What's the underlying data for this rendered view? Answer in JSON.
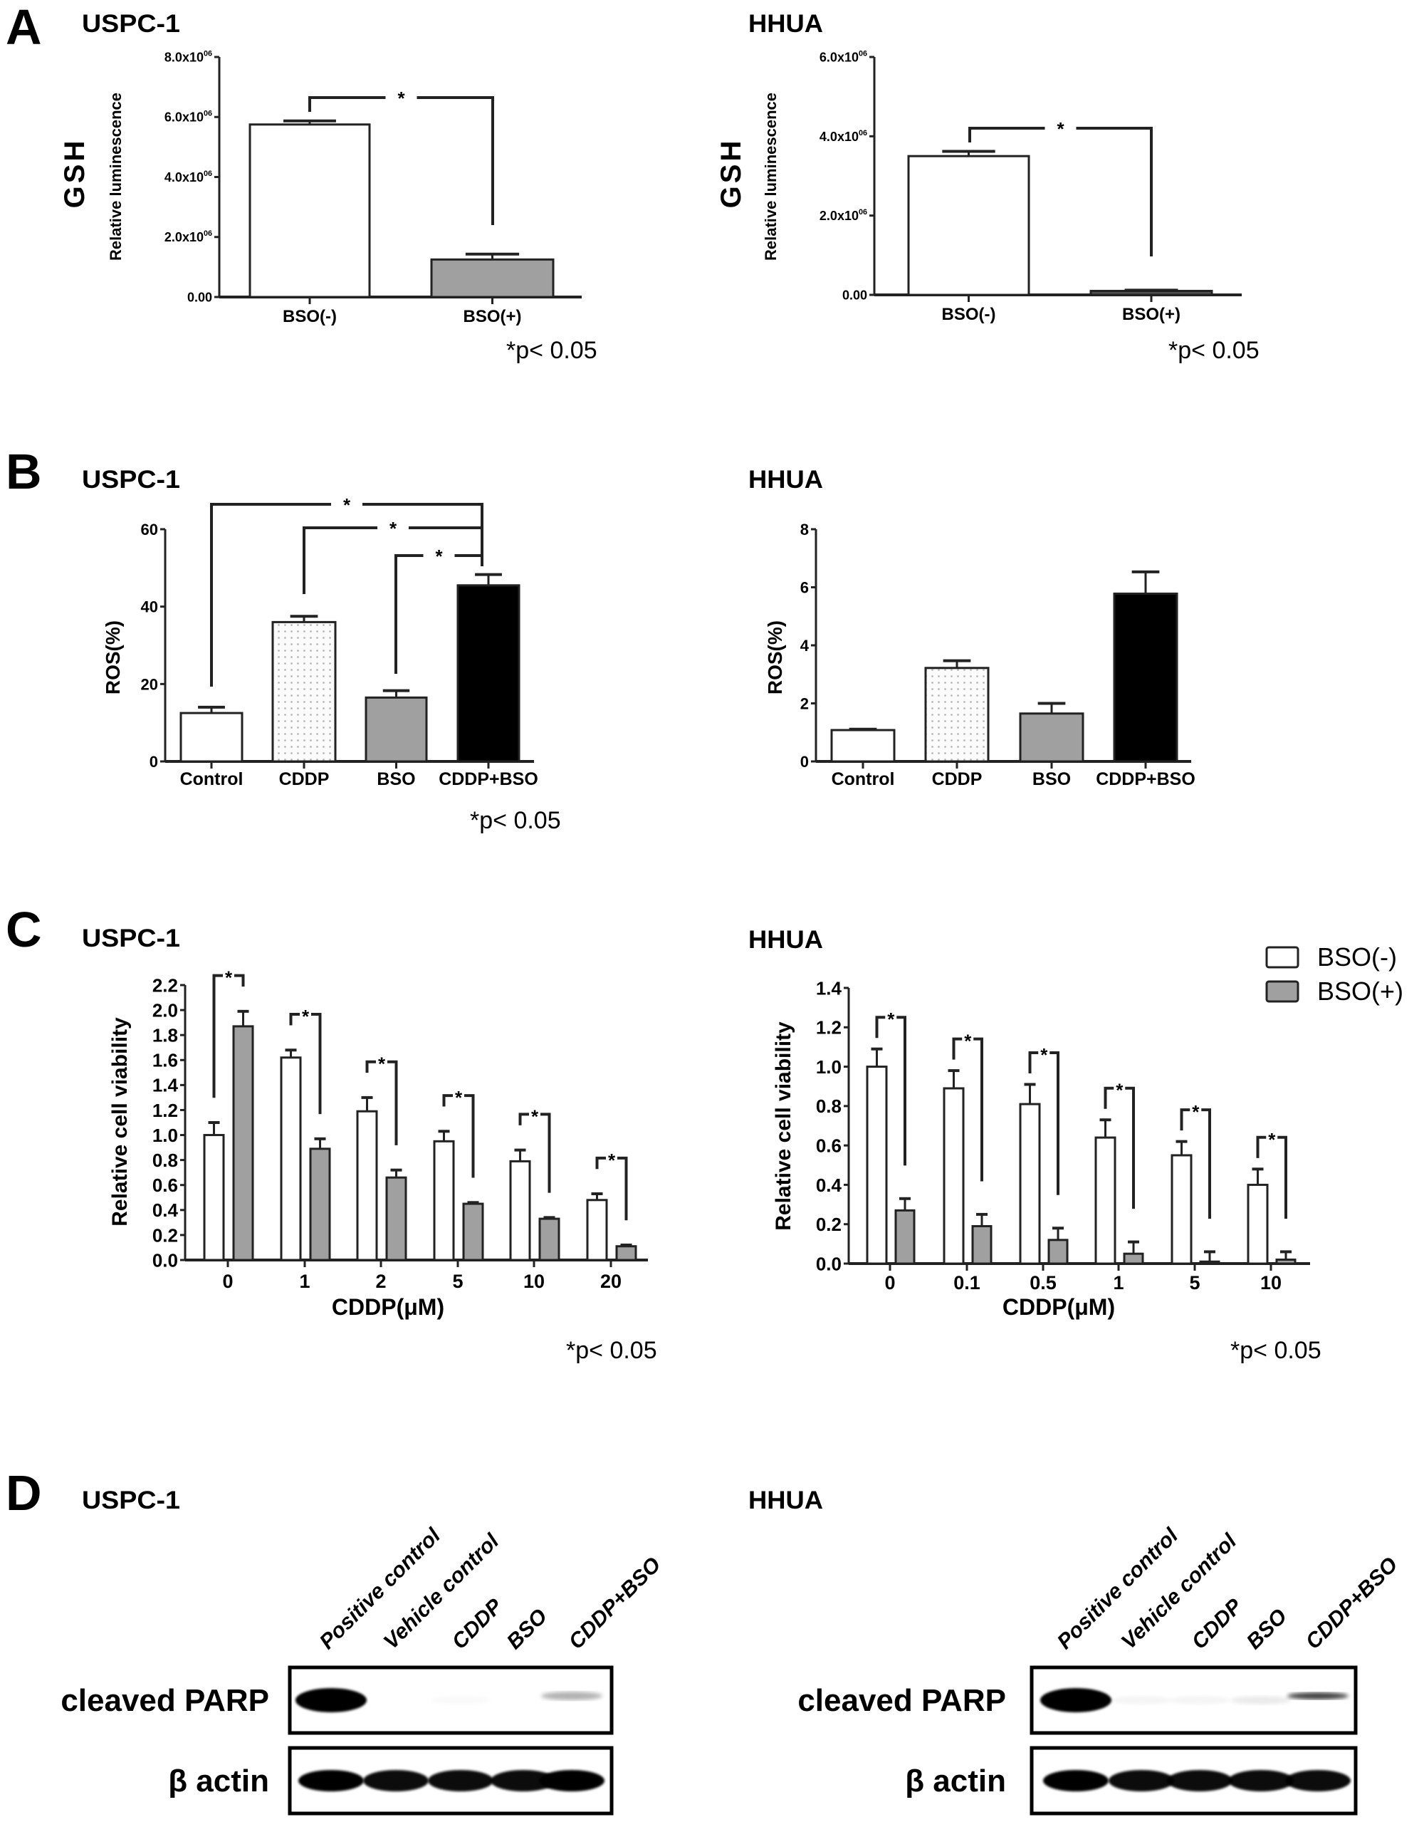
{
  "figure": {
    "panels": [
      {
        "letter": "A",
        "left_title": "USPC-1",
        "right_title": "HHUA"
      },
      {
        "letter": "B",
        "left_title": "USPC-1",
        "right_title": "HHUA"
      },
      {
        "letter": "C",
        "left_title": "USPC-1",
        "right_title": "HHUA"
      },
      {
        "letter": "D",
        "left_title": "USPC-1",
        "right_title": "HHUA"
      }
    ]
  },
  "chart_data": [
    {
      "panel": "A",
      "cell_line": "USPC-1",
      "type": "bar",
      "measure_label": "GSH",
      "ylabel": "Relative luminescence",
      "xlabel": "",
      "ylim": [
        0,
        8000000
      ],
      "yticks": [
        {
          "value": 0,
          "label": "0.00",
          "exp": ""
        },
        {
          "value": 2000000,
          "label": "2.0x10",
          "exp": "06"
        },
        {
          "value": 4000000,
          "label": "4.0x10",
          "exp": "06"
        },
        {
          "value": 6000000,
          "label": "6.0x10",
          "exp": "06"
        },
        {
          "value": 8000000,
          "label": "8.0x10",
          "exp": "06"
        }
      ],
      "categories": [
        "BSO(-)",
        "BSO(+)"
      ],
      "values": [
        5750000,
        1250000
      ],
      "errors": [
        120000,
        180000
      ],
      "fills": [
        "#ffffff",
        "#a0a0a0"
      ],
      "significance": [
        {
          "between": [
            "BSO(-)",
            "BSO(+)"
          ],
          "label": "*"
        }
      ],
      "note": "*p< 0.05"
    },
    {
      "panel": "A",
      "cell_line": "HHUA",
      "type": "bar",
      "measure_label": "GSH",
      "ylabel": "Relative luminescence",
      "xlabel": "",
      "ylim": [
        0,
        6000000
      ],
      "yticks": [
        {
          "value": 0,
          "label": "0.00",
          "exp": ""
        },
        {
          "value": 2000000,
          "label": "2.0x10",
          "exp": "06"
        },
        {
          "value": 4000000,
          "label": "4.0x10",
          "exp": "06"
        },
        {
          "value": 6000000,
          "label": "6.0x10",
          "exp": "06"
        }
      ],
      "categories": [
        "BSO(-)",
        "BSO(+)"
      ],
      "values": [
        3500000,
        100000
      ],
      "errors": [
        120000,
        20000
      ],
      "fills": [
        "#ffffff",
        "#505050"
      ],
      "significance": [
        {
          "between": [
            "BSO(-)",
            "BSO(+)"
          ],
          "label": "*"
        }
      ],
      "note": "*p< 0.05"
    },
    {
      "panel": "B",
      "cell_line": "USPC-1",
      "type": "bar",
      "ylabel": "ROS(%)",
      "xlabel": "",
      "ylim": [
        0,
        60
      ],
      "yticks": [
        {
          "value": 0,
          "label": "0",
          "exp": ""
        },
        {
          "value": 20,
          "label": "20",
          "exp": ""
        },
        {
          "value": 40,
          "label": "40",
          "exp": ""
        },
        {
          "value": 60,
          "label": "60",
          "exp": ""
        }
      ],
      "categories": [
        "Control",
        "CDDP",
        "BSO",
        "CDDP+BSO"
      ],
      "values": [
        12.5,
        36,
        16.5,
        45.5
      ],
      "errors": [
        1.5,
        1.5,
        1.8,
        2.8
      ],
      "fills": [
        "#ffffff",
        "dotted",
        "#a0a0a0",
        "#000000"
      ],
      "significance": [
        {
          "between": [
            "Control",
            "CDDP+BSO"
          ],
          "label": "*"
        },
        {
          "between": [
            "CDDP",
            "CDDP+BSO"
          ],
          "label": "*"
        },
        {
          "between": [
            "BSO",
            "CDDP+BSO"
          ],
          "label": "*"
        }
      ],
      "note": "*p< 0.05"
    },
    {
      "panel": "B",
      "cell_line": "HHUA",
      "type": "bar",
      "ylabel": "ROS(%)",
      "xlabel": "",
      "ylim": [
        0,
        8
      ],
      "yticks": [
        {
          "value": 0,
          "label": "0",
          "exp": ""
        },
        {
          "value": 2,
          "label": "2",
          "exp": ""
        },
        {
          "value": 4,
          "label": "4",
          "exp": ""
        },
        {
          "value": 6,
          "label": "6",
          "exp": ""
        },
        {
          "value": 8,
          "label": "8",
          "exp": ""
        }
      ],
      "categories": [
        "Control",
        "CDDP",
        "BSO",
        "CDDP+BSO"
      ],
      "values": [
        1.08,
        3.22,
        1.65,
        5.78
      ],
      "errors": [
        0.03,
        0.25,
        0.35,
        0.75
      ],
      "fills": [
        "#ffffff",
        "dotted",
        "#a0a0a0",
        "#000000"
      ],
      "significance": []
    },
    {
      "panel": "C",
      "cell_line": "USPC-1",
      "type": "bar",
      "ylabel": "Relative cell viability",
      "xlabel": "CDDP(μM)",
      "ylim": [
        0,
        2.2
      ],
      "yticks": [
        {
          "value": 0,
          "label": "0.0"
        },
        {
          "value": 0.2,
          "label": "0.2"
        },
        {
          "value": 0.4,
          "label": "0.4"
        },
        {
          "value": 0.6,
          "label": "0.6"
        },
        {
          "value": 0.8,
          "label": "0.8"
        },
        {
          "value": 1.0,
          "label": "1.0"
        },
        {
          "value": 1.2,
          "label": "1.2"
        },
        {
          "value": 1.4,
          "label": "1.4"
        },
        {
          "value": 1.6,
          "label": "1.6"
        },
        {
          "value": 1.8,
          "label": "1.8"
        },
        {
          "value": 2.0,
          "label": "2.0"
        },
        {
          "value": 2.2,
          "label": "2.2"
        }
      ],
      "categories": [
        "0",
        "1",
        "2",
        "5",
        "10",
        "20"
      ],
      "series": [
        {
          "name": "BSO(-)",
          "fill": "#ffffff",
          "values": [
            1.0,
            1.62,
            1.19,
            0.95,
            0.79,
            0.48
          ],
          "errors": [
            0.1,
            0.06,
            0.11,
            0.08,
            0.09,
            0.05
          ]
        },
        {
          "name": "BSO(+)",
          "fill": "#a0a0a0",
          "values": [
            1.87,
            0.89,
            0.66,
            0.45,
            0.33,
            0.11
          ],
          "errors": [
            0.12,
            0.08,
            0.06,
            0.01,
            0.01,
            0.01
          ]
        }
      ],
      "significance_label": "*",
      "note": "*p< 0.05"
    },
    {
      "panel": "C",
      "cell_line": "HHUA",
      "type": "bar",
      "ylabel": "Relative cell viability",
      "xlabel": "CDDP(μM)",
      "ylim": [
        0,
        1.4
      ],
      "yticks": [
        {
          "value": 0,
          "label": "0.0"
        },
        {
          "value": 0.2,
          "label": "0.2"
        },
        {
          "value": 0.4,
          "label": "0.4"
        },
        {
          "value": 0.6,
          "label": "0.6"
        },
        {
          "value": 0.8,
          "label": "0.8"
        },
        {
          "value": 1.0,
          "label": "1.0"
        },
        {
          "value": 1.2,
          "label": "1.2"
        },
        {
          "value": 1.4,
          "label": "1.4"
        }
      ],
      "categories": [
        "0",
        "0.1",
        "0.5",
        "1",
        "5",
        "10"
      ],
      "series": [
        {
          "name": "BSO(-)",
          "fill": "#ffffff",
          "values": [
            1.0,
            0.89,
            0.81,
            0.64,
            0.55,
            0.4
          ],
          "errors": [
            0.09,
            0.09,
            0.1,
            0.09,
            0.07,
            0.08
          ]
        },
        {
          "name": "BSO(+)",
          "fill": "#a0a0a0",
          "values": [
            0.27,
            0.19,
            0.12,
            0.05,
            0.01,
            0.02
          ],
          "errors": [
            0.06,
            0.06,
            0.06,
            0.06,
            0.05,
            0.04
          ]
        }
      ],
      "significance_label": "*",
      "legend": {
        "position": "top-right",
        "entries": [
          "BSO(-)",
          "BSO(+)"
        ]
      },
      "note": "*p< 0.05"
    }
  ],
  "blots": [
    {
      "panel": "D",
      "cell_line": "USPC-1",
      "lanes": [
        "Positive control",
        "Vehicle control",
        "CDDP",
        "BSO",
        "CDDP+BSO"
      ],
      "rows": [
        {
          "label": "cleaved PARP",
          "band_intensity": [
            1.0,
            0.0,
            0.02,
            0.0,
            0.3
          ]
        },
        {
          "label": "β actin",
          "band_intensity": [
            1.0,
            0.95,
            0.95,
            0.95,
            1.0
          ]
        }
      ]
    },
    {
      "panel": "D",
      "cell_line": "HHUA",
      "lanes": [
        "Positive control",
        "Vehicle control",
        "CDDP",
        "BSO",
        "CDDP+BSO"
      ],
      "rows": [
        {
          "label": "cleaved PARP",
          "band_intensity": [
            1.0,
            0.04,
            0.04,
            0.08,
            0.75
          ]
        },
        {
          "label": "β actin",
          "band_intensity": [
            1.0,
            0.95,
            0.95,
            0.95,
            0.95
          ]
        }
      ]
    }
  ]
}
